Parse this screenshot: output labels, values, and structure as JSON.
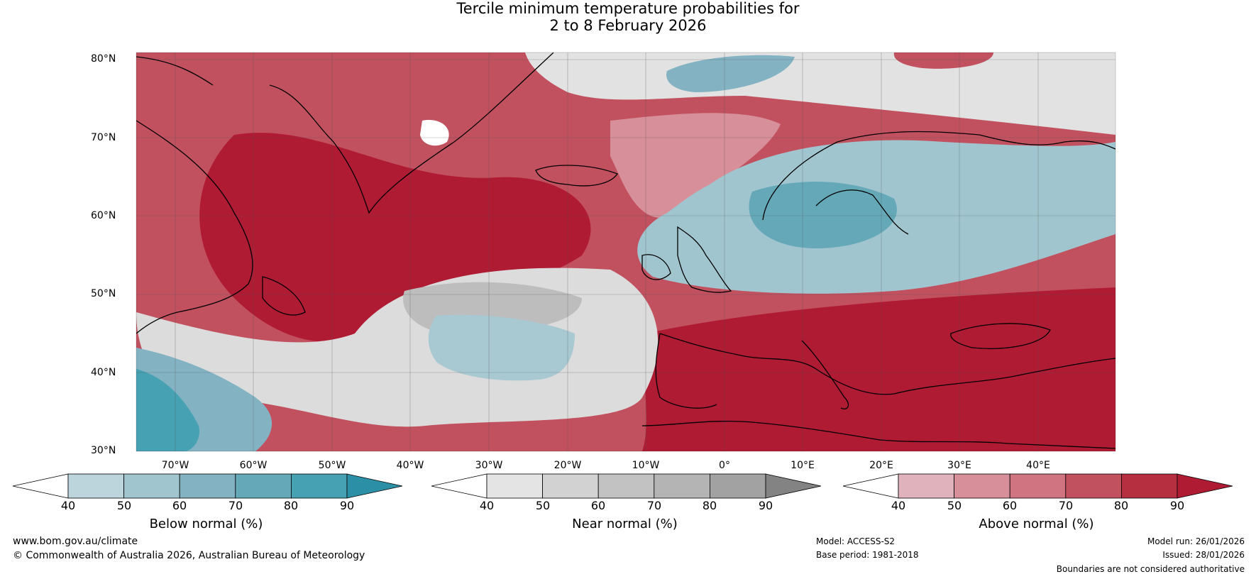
{
  "title_line1": "Tercile minimum temperature probabilities for",
  "title_line2": "2 to 8 February 2026",
  "map": {
    "lat_labels": [
      "80°N",
      "70°N",
      "60°N",
      "50°N",
      "40°N",
      "30°N"
    ],
    "lon_labels": [
      "70°W",
      "60°W",
      "50°W",
      "40°W",
      "30°W",
      "20°W",
      "10°W",
      "0°",
      "10°E",
      "20°E",
      "30°E",
      "40°E"
    ],
    "extent": {
      "lon_min": -75,
      "lon_max": 50,
      "lat_min": 30,
      "lat_max": 81
    }
  },
  "colorbars": [
    {
      "name": "below",
      "label": "Below normal (%)",
      "ticks": [
        "40",
        "50",
        "60",
        "70",
        "80",
        "90"
      ],
      "colors": [
        "#ffffff",
        "#bcd4dc",
        "#a1c5cf",
        "#83b3c2",
        "#65a9b9",
        "#46a1b3",
        "#2b90a6"
      ]
    },
    {
      "name": "near",
      "label": "Near normal (%)",
      "ticks": [
        "40",
        "50",
        "60",
        "70",
        "80",
        "90"
      ],
      "colors": [
        "#ffffff",
        "#e4e4e4",
        "#d2d2d2",
        "#c2c2c2",
        "#b4b4b4",
        "#a2a2a2",
        "#838383"
      ]
    },
    {
      "name": "above",
      "label": "Above normal (%)",
      "ticks": [
        "40",
        "50",
        "60",
        "70",
        "80",
        "90"
      ],
      "colors": [
        "#ffffff",
        "#e0b3bc",
        "#d78f99",
        "#cf7480",
        "#c2515f",
        "#b52f41",
        "#b01b34"
      ]
    }
  ],
  "footer": {
    "website": "www.bom.gov.au/climate",
    "copyright": "© Commonwealth of Australia 2026, Australian Bureau of Meteorology",
    "model": "Model: ACCESS-S2",
    "base_period": "Base period: 1981-2018",
    "model_run": "Model run: 26/01/2026",
    "issued": "Issued: 28/01/2026",
    "disclaimer": "Boundaries are not considered authoritative"
  }
}
